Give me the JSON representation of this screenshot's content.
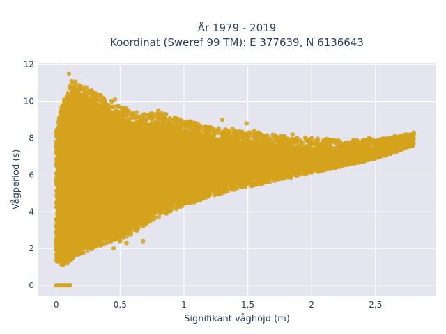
{
  "chart_data": {
    "type": "scatter",
    "title_line1": "År 1979 - 2019",
    "title_line2": "Koordinat (Sweref 99 TM): E 377639, N 6136643",
    "xlabel": "Signifikant våghöjd (m)",
    "ylabel": "Vågperiod (s)",
    "xlim": [
      -0.14,
      2.97
    ],
    "ylim": [
      -0.6,
      12.1
    ],
    "xticks": [
      0,
      0.5,
      1,
      1.5,
      2,
      2.5
    ],
    "xtick_labels": [
      "0",
      "0,5",
      "1",
      "1,5",
      "2",
      "2,5"
    ],
    "yticks": [
      0,
      2,
      4,
      6,
      8,
      10,
      12
    ],
    "ytick_labels": [
      "0",
      "2",
      "4",
      "6",
      "8",
      "10",
      "12"
    ],
    "grid": true,
    "legend": "none",
    "marker_color": "#D4A21C",
    "plot_background": "#E5E5EF",
    "envelope": {
      "x": [
        0.0,
        0.05,
        0.1,
        0.15,
        0.2,
        0.25,
        0.3,
        0.4,
        0.5,
        0.6,
        0.7,
        0.8,
        0.9,
        1.0,
        1.2,
        1.4,
        1.6,
        1.8,
        2.0,
        2.2,
        2.4,
        2.6,
        2.8
      ],
      "y_lower": [
        1.3,
        1.1,
        1.3,
        1.5,
        1.7,
        1.9,
        2.0,
        2.3,
        2.5,
        2.8,
        3.3,
        3.7,
        4.0,
        4.3,
        4.8,
        5.2,
        5.5,
        5.8,
        6.1,
        6.4,
        6.7,
        7.1,
        7.6
      ],
      "y_upper": [
        8.3,
        10.0,
        10.8,
        11.2,
        10.9,
        10.7,
        10.5,
        10.2,
        9.7,
        9.4,
        9.3,
        9.4,
        9.2,
        9.0,
        8.6,
        8.4,
        8.3,
        8.1,
        8.0,
        7.9,
        7.9,
        8.0,
        8.3
      ],
      "y_center": [
        4.5,
        5.2,
        5.5,
        5.6,
        5.6,
        5.6,
        5.6,
        5.6,
        5.6,
        5.7,
        5.8,
        5.9,
        6.0,
        6.1,
        6.2,
        6.3,
        6.4,
        6.5,
        6.6,
        6.8,
        7.0,
        7.3,
        7.9
      ]
    },
    "zero_period_points": [
      [
        0.0,
        0
      ],
      [
        0.02,
        0
      ],
      [
        0.04,
        0
      ],
      [
        0.06,
        0
      ],
      [
        0.08,
        0
      ],
      [
        0.1,
        0
      ],
      [
        0.11,
        0
      ]
    ],
    "outlier_points": [
      [
        0.1,
        11.5
      ],
      [
        0.12,
        11.1
      ],
      [
        0.15,
        10.9
      ],
      [
        0.18,
        10.6
      ],
      [
        0.22,
        10.4
      ],
      [
        0.28,
        10.3
      ],
      [
        0.35,
        10.3
      ],
      [
        0.46,
        10.1
      ],
      [
        0.55,
        9.6
      ],
      [
        0.63,
        9.4
      ],
      [
        0.72,
        9.2
      ],
      [
        0.8,
        9.5
      ],
      [
        0.86,
        9.3
      ],
      [
        0.93,
        9.1
      ],
      [
        1.05,
        8.9
      ],
      [
        1.2,
        8.6
      ],
      [
        1.3,
        9.0
      ],
      [
        1.38,
        8.5
      ],
      [
        1.49,
        8.8
      ],
      [
        1.55,
        8.4
      ],
      [
        1.6,
        8.2
      ],
      [
        1.72,
        8.1
      ],
      [
        1.85,
        8.2
      ],
      [
        2.0,
        8.0
      ],
      [
        2.15,
        7.9
      ],
      [
        2.33,
        7.9
      ],
      [
        2.45,
        8.0
      ],
      [
        2.58,
        7.9
      ],
      [
        2.65,
        8.1
      ],
      [
        2.74,
        8.1
      ],
      [
        2.8,
        8.3
      ],
      [
        0.45,
        2.0
      ],
      [
        0.55,
        2.3
      ],
      [
        0.68,
        2.4
      ],
      [
        0.5,
        2.4
      ],
      [
        0.03,
        1.5
      ],
      [
        0.06,
        1.2
      ],
      [
        0.09,
        1.2
      ],
      [
        0.0,
        2.0
      ],
      [
        0.01,
        3.6
      ],
      [
        0.02,
        7.9
      ]
    ]
  }
}
